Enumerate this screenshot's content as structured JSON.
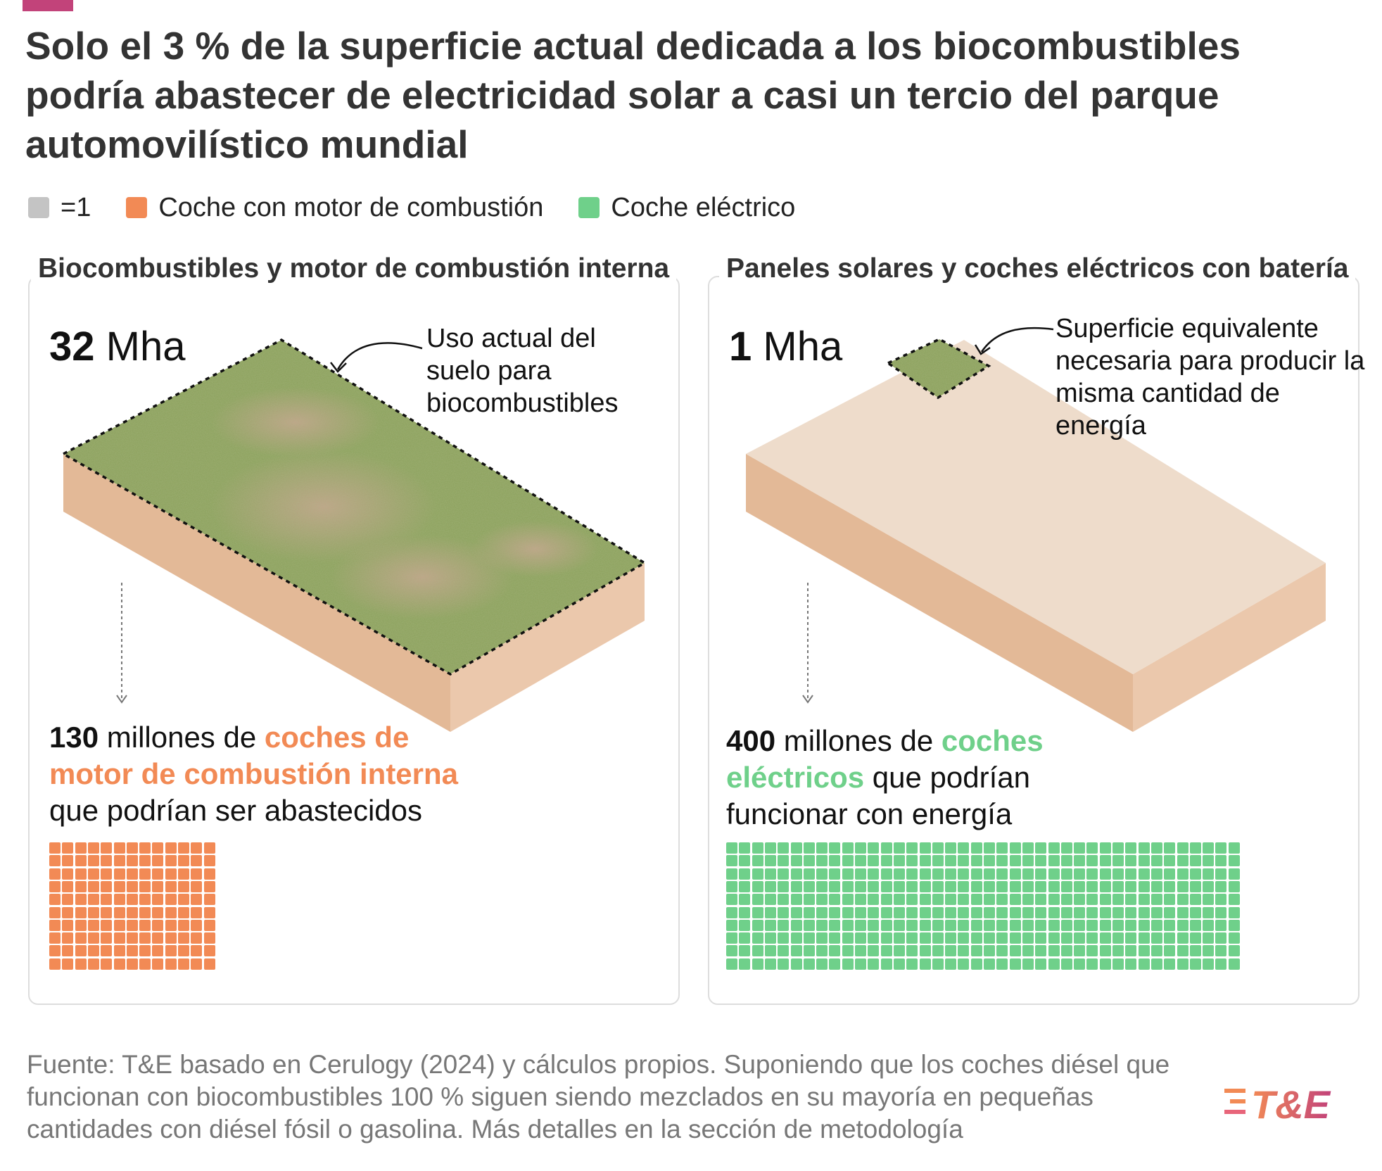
{
  "title": "Solo el 3 % de la superficie actual dedicada a los biocombustibles podría abastecer de electricidad solar a casi un tercio del parque automovilístico mundial",
  "legend": {
    "unit_label": "=1",
    "combustion_label": "Coche con motor de combustión",
    "electric_label": "Coche eléctrico",
    "unit_color": "#c4c4c4",
    "combustion_color": "#f28a55",
    "electric_color": "#6fd08a"
  },
  "left_panel": {
    "title": "Biocombustibles y motor de combustión interna",
    "area_number": "32",
    "area_unit": "Mha",
    "annotation": "Uso actual del suelo para biocombustibles",
    "result_number": "130",
    "result_text_1": "millones de",
    "result_highlight": "coches de motor de combustión interna",
    "result_text_2": "que podrían ser abastecidos"
  },
  "right_panel": {
    "title": "Paneles solares y coches eléctricos con batería",
    "area_number": "1",
    "area_unit": "Mha",
    "annotation": "Superficie equivalente necesaria para producir la misma cantidad de energía",
    "result_number": "400",
    "result_text_1": "millones de",
    "result_highlight": "coches eléctricos",
    "result_text_2": "que podrían funcionar con energía"
  },
  "source": "Fuente: T&E basado en Cerulogy (2024) y cálculos propios. Suponiendo que los coches diésel que funcionan con biocombustibles 100 % siguen siendo mezclados en su mayoría en pequeñas cantidades con diésel fósil o gasolina. Más detalles en la sección de metodología",
  "logo_text": "T&E",
  "colors": {
    "accent": "#c2437a",
    "slab_top": "#eedccb",
    "slab_side_left": "#e3b997",
    "slab_side_right": "#ebc8ac",
    "grass": "#8aa05a"
  },
  "chart_data": {
    "type": "waffle",
    "unit": "1 icono = 1 millón de coches",
    "series": [
      {
        "name": "Coche con motor de combustión",
        "land_mha": 32,
        "cars_millions": 130
      },
      {
        "name": "Coche eléctrico",
        "land_mha": 1,
        "cars_millions": 400
      }
    ]
  }
}
